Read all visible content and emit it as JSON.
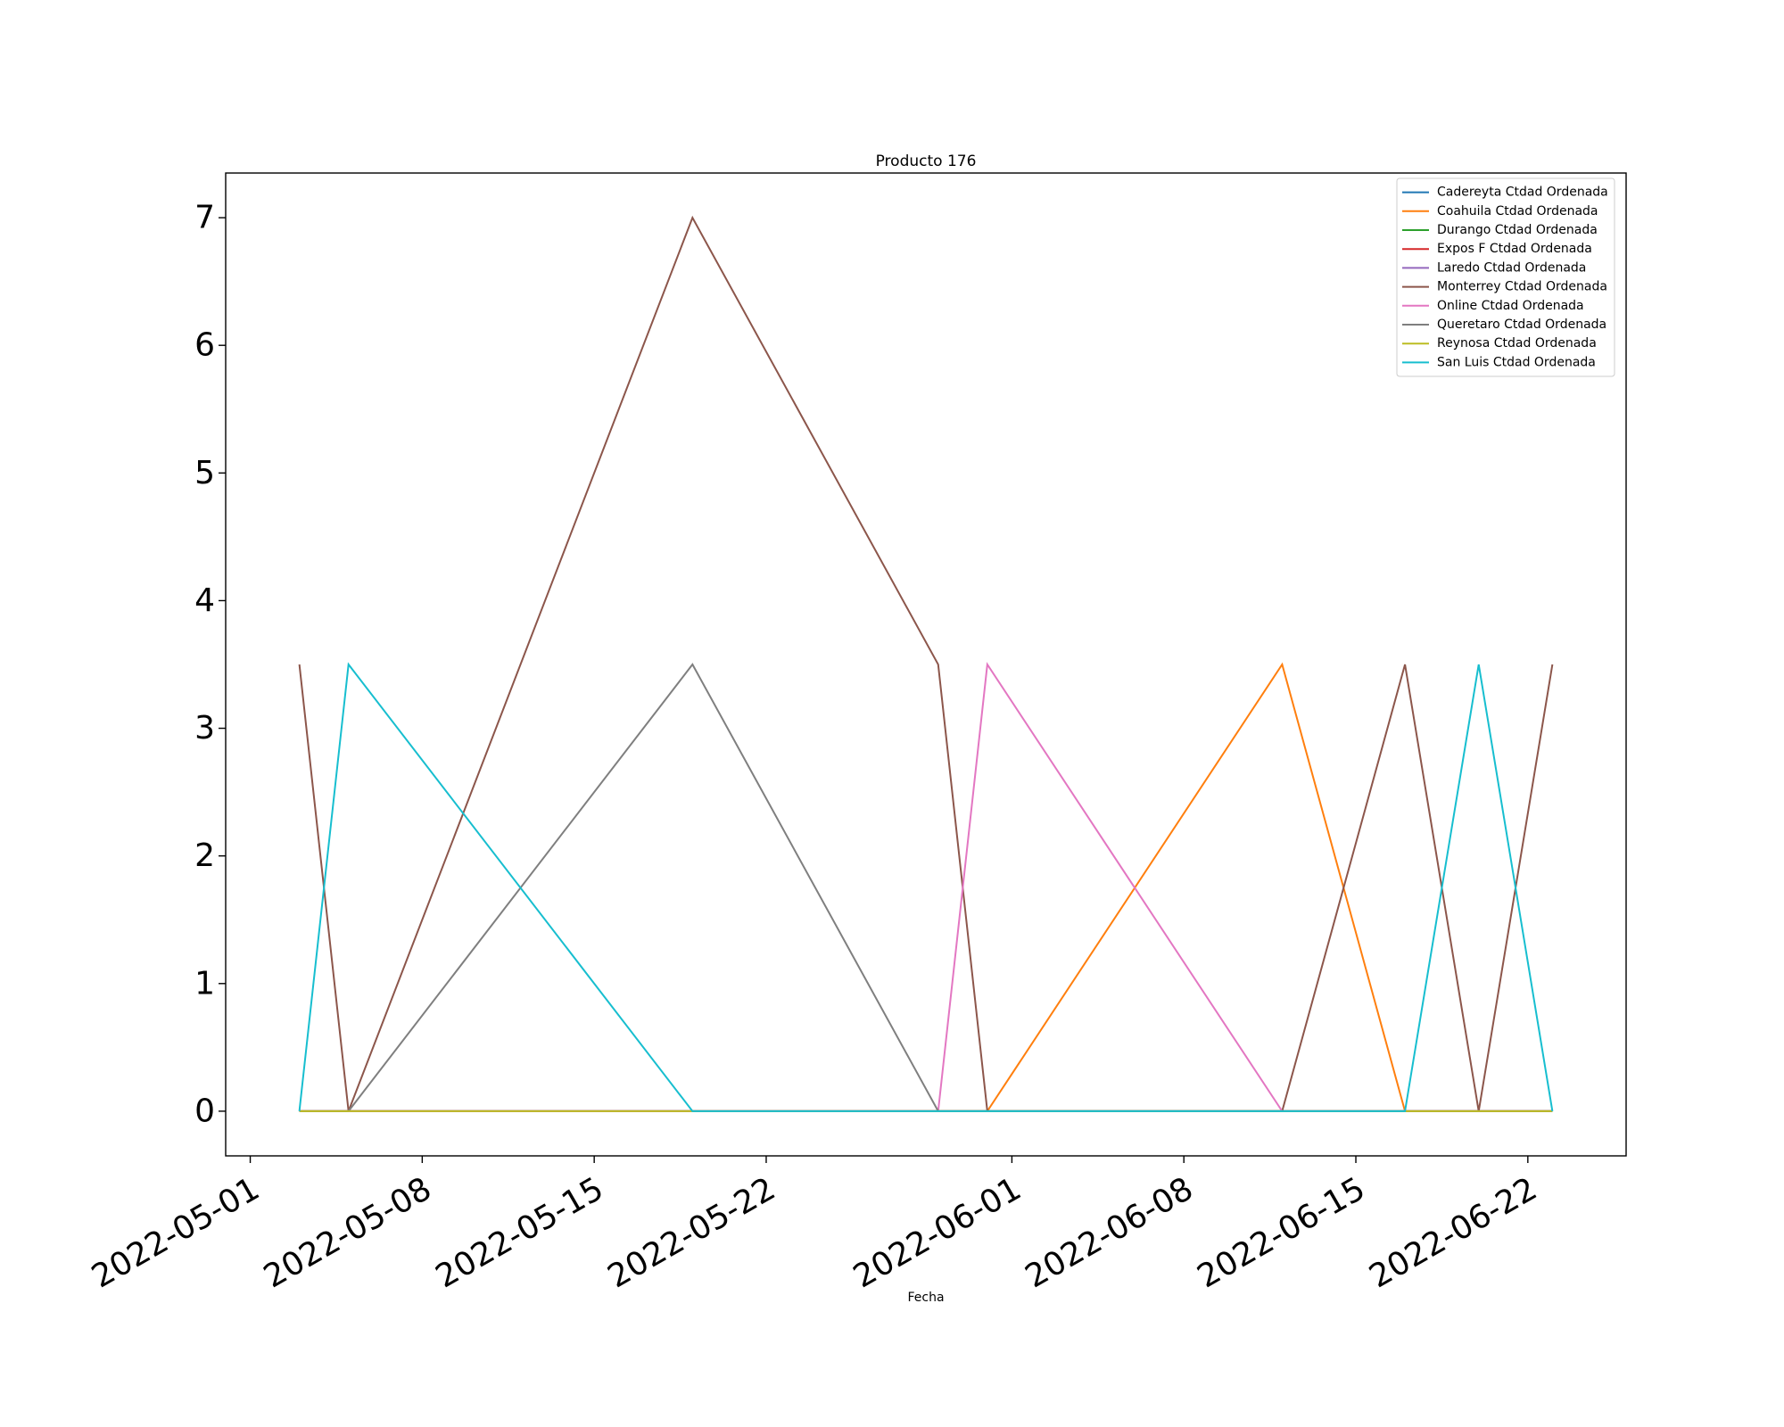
{
  "chart_data": {
    "type": "line",
    "title": "Producto 176",
    "xlabel": "Fecha",
    "ylabel": "",
    "x_type": "date",
    "xlim": [
      "2022-04-30",
      "2022-06-26"
    ],
    "ylim": [
      -0.35,
      7.35
    ],
    "x_ticks": [
      "2022-05-01",
      "2022-05-08",
      "2022-05-15",
      "2022-05-22",
      "2022-06-01",
      "2022-06-08",
      "2022-06-15",
      "2022-06-22"
    ],
    "y_ticks": [
      0,
      1,
      2,
      3,
      4,
      5,
      6,
      7
    ],
    "grid": false,
    "legend_position": "top-right",
    "x": [
      "2022-05-03",
      "2022-05-05",
      "2022-05-19",
      "2022-05-29",
      "2022-05-31",
      "2022-06-12",
      "2022-06-17",
      "2022-06-20",
      "2022-06-23"
    ],
    "series": [
      {
        "name": "Cadereyta Ctdad Ordenada",
        "color": "#1f77b4",
        "values": [
          0,
          0,
          0,
          0,
          0,
          0,
          0,
          0,
          0
        ]
      },
      {
        "name": "Coahuila Ctdad Ordenada",
        "color": "#ff7f0e",
        "values": [
          0,
          0,
          0,
          0,
          0,
          3.5,
          0,
          0,
          0
        ]
      },
      {
        "name": "Durango Ctdad Ordenada",
        "color": "#2ca02c",
        "values": [
          0,
          0,
          0,
          0,
          0,
          0,
          0,
          0,
          0
        ]
      },
      {
        "name": "Expos F Ctdad Ordenada",
        "color": "#d62728",
        "values": [
          0,
          0,
          0,
          0,
          0,
          0,
          0,
          0,
          0
        ]
      },
      {
        "name": "Laredo Ctdad Ordenada",
        "color": "#9467bd",
        "values": [
          0,
          0,
          0,
          0,
          0,
          0,
          0,
          0,
          0
        ]
      },
      {
        "name": "Monterrey Ctdad Ordenada",
        "color": "#8c564b",
        "values": [
          3.5,
          0,
          7,
          3.5,
          0,
          0,
          3.5,
          0,
          3.5
        ]
      },
      {
        "name": "Online Ctdad Ordenada",
        "color": "#e377c2",
        "values": [
          0,
          0,
          0,
          0,
          3.5,
          0,
          0,
          0,
          0
        ]
      },
      {
        "name": "Queretaro Ctdad Ordenada",
        "color": "#7f7f7f",
        "values": [
          0,
          0,
          3.5,
          0,
          0,
          0,
          0,
          0,
          0
        ]
      },
      {
        "name": "Reynosa Ctdad Ordenada",
        "color": "#bcbd22",
        "values": [
          0,
          0,
          0,
          0,
          0,
          0,
          0,
          0,
          0
        ]
      },
      {
        "name": "San Luis Ctdad Ordenada",
        "color": "#17becf",
        "values": [
          0,
          3.5,
          0,
          0,
          0,
          0,
          0,
          3.5,
          0
        ]
      }
    ]
  }
}
